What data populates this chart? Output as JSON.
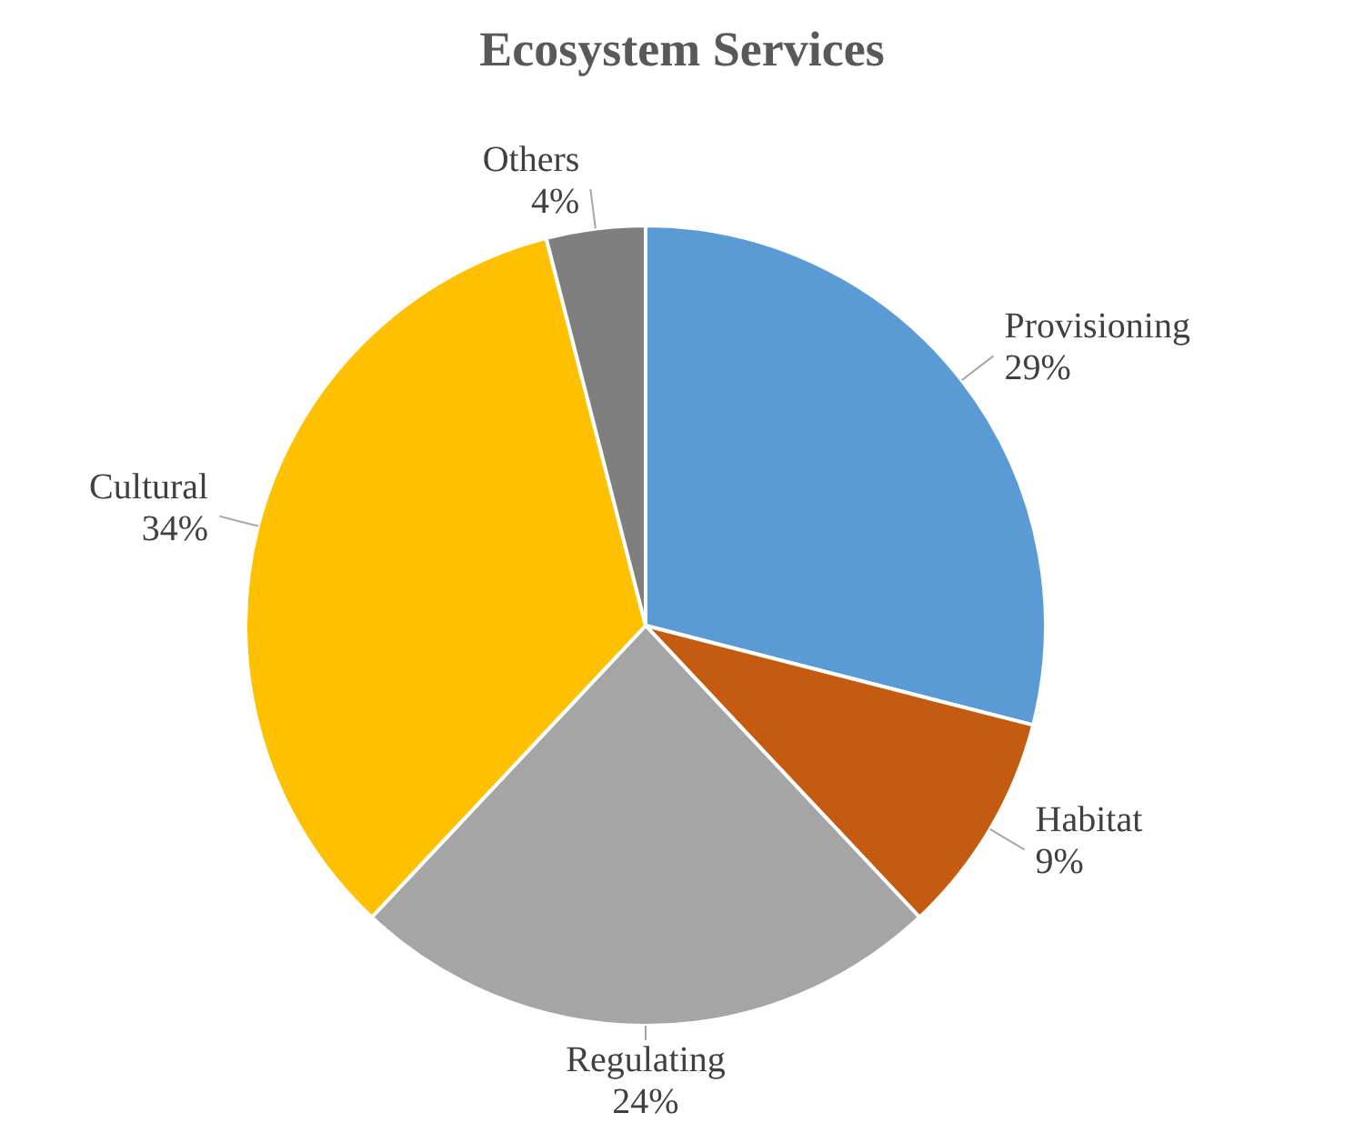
{
  "chart_data": {
    "type": "pie",
    "title": "Ecosystem Services",
    "categories": [
      "Provisioning",
      "Habitat",
      "Regulating",
      "Cultural",
      "Others"
    ],
    "values": [
      29,
      9,
      24,
      34,
      4
    ],
    "value_labels": [
      "29%",
      "9%",
      "24%",
      "34%",
      "4%"
    ],
    "colors": [
      "#5b9bd5",
      "#c55a11",
      "#a5a5a5",
      "#ffc000",
      "#7f7f7f"
    ],
    "legend": false
  }
}
